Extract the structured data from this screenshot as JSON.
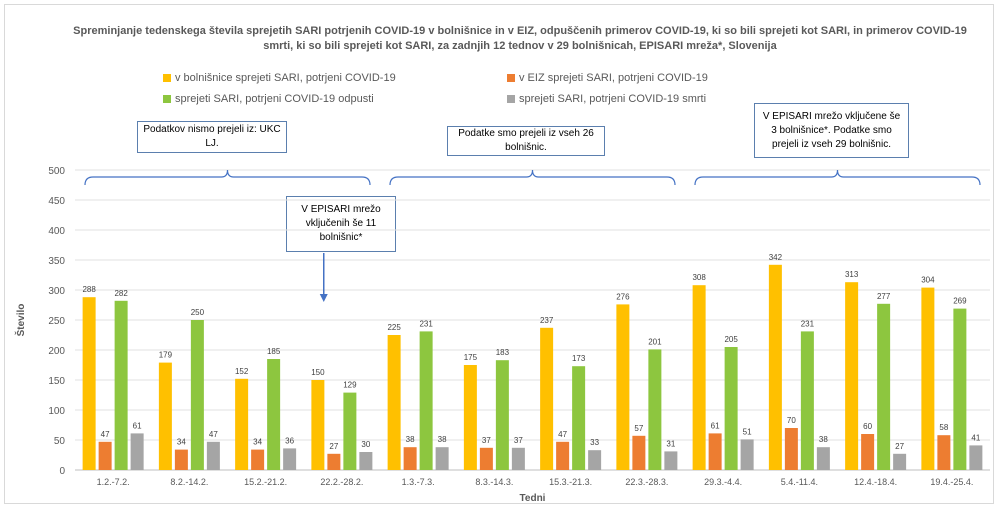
{
  "chart_data": {
    "type": "bar",
    "title": "Spreminjanje tedenskega števila sprejetih SARI potrjenih COVID-19 v bolnišnice in v EIZ, odpuščenih primerov COVID-19, ki so bili sprejeti kot SARI, in primerov COVID-19 smrti, ki so bili sprejeti kot SARI, za zadnjih 12 tednov  v 29 bolnišnicah, EPISARI mreža*, Slovenija",
    "xlabel": "Tedni",
    "ylabel": "Število",
    "ylim": [
      0,
      500
    ],
    "yticks": [
      0,
      50,
      100,
      150,
      200,
      250,
      300,
      350,
      400,
      450,
      500
    ],
    "grid": true,
    "legend_position": "top",
    "categories": [
      "1.2.-7.2.",
      "8.2.-14.2.",
      "15.2.-21.2.",
      "22.2.-28.2.",
      "1.3.-7.3.",
      "8.3.-14.3.",
      "15.3.-21.3.",
      "22.3.-28.3.",
      "29.3.-4.4.",
      "5.4.-11.4.",
      "12.4.-18.4.",
      "19.4.-25.4."
    ],
    "series": [
      {
        "name": "v bolnišnice sprejeti SARI, potrjeni COVID-19",
        "color": "#FFC000",
        "values": [
          288,
          179,
          152,
          150,
          225,
          175,
          237,
          276,
          308,
          342,
          313,
          304
        ]
      },
      {
        "name": "v EIZ sprejeti SARI, potrjeni COVID-19",
        "color": "#ED7D31",
        "values": [
          47,
          34,
          34,
          27,
          38,
          37,
          47,
          57,
          61,
          70,
          60,
          58
        ]
      },
      {
        "name": "sprejeti SARI, potrjeni COVID-19 odpusti",
        "color": "#8DC63F",
        "values": [
          282,
          250,
          185,
          129,
          231,
          183,
          173,
          201,
          205,
          231,
          277,
          269
        ]
      },
      {
        "name": "sprejeti SARI, potrjeni COVID-19 smrti",
        "color": "#A5A5A5",
        "values": [
          61,
          47,
          36,
          30,
          38,
          37,
          33,
          31,
          51,
          38,
          27,
          41
        ]
      }
    ],
    "annotations": [
      {
        "text": "Podatkov nismo prejeli iz: UKC LJ.",
        "from": 0,
        "to": 3
      },
      {
        "text": "Podatke smo prejeli iz vseh 26 bolnišnic.",
        "from": 4,
        "to": 7
      },
      {
        "text": "V EPISARI mrežo vključene še 3 bolnišnice*. Podatke smo prejeli iz vseh 29 bolnišnic.",
        "from": 8,
        "to": 11
      },
      {
        "text": "V EPISARI mrežo vključenih še 11 bolnišnic*",
        "arrow_at": 3
      }
    ]
  }
}
